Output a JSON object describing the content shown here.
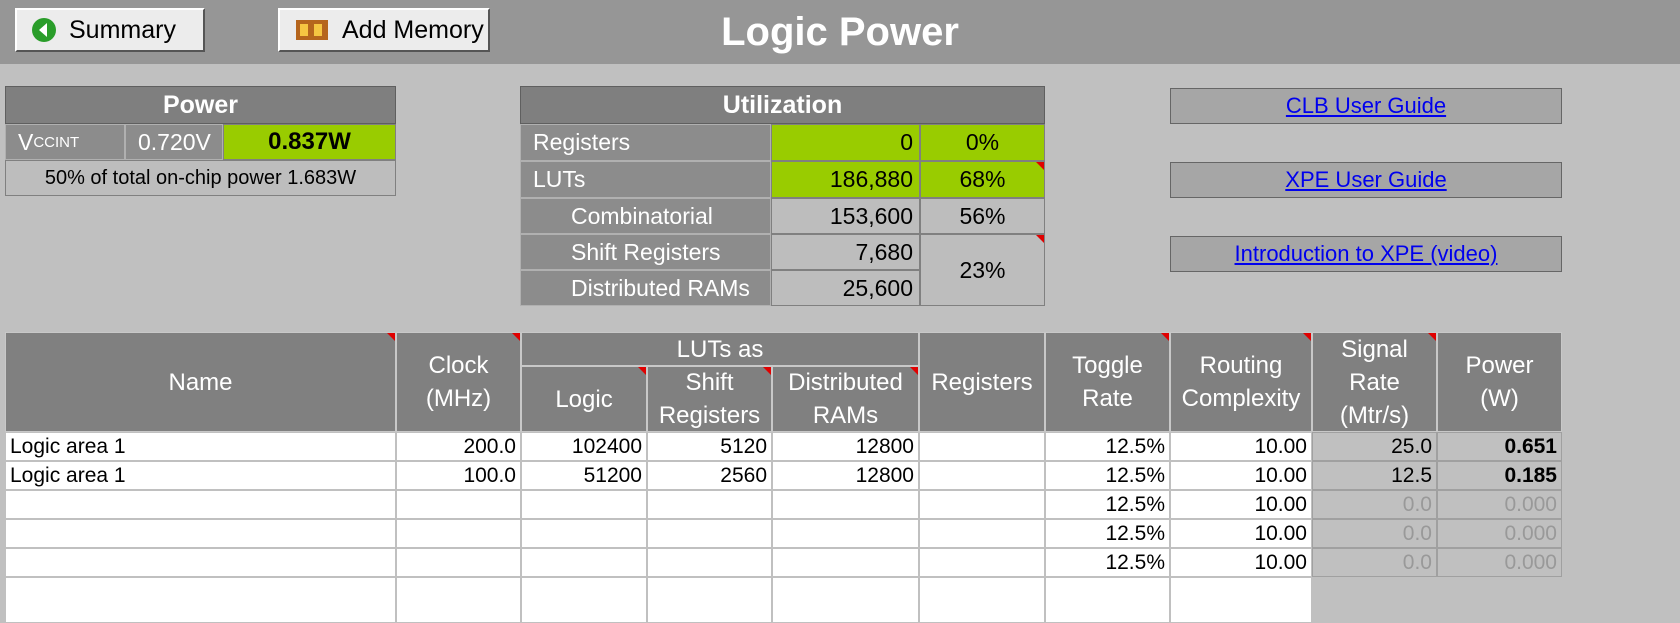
{
  "header": {
    "buttons": [
      "Summary",
      "Add Memory"
    ],
    "title": "Logic Power"
  },
  "power": {
    "title": "Power",
    "supply": "V",
    "supply_sub": "CCINT",
    "voltage": "0.720V",
    "power": "0.837W",
    "note": "50% of total on-chip power 1.683W"
  },
  "utilization": {
    "title": "Utilization",
    "rows": [
      {
        "label": "Registers",
        "count": "0",
        "percent": "0%"
      },
      {
        "label": "LUTs",
        "count": "186,880",
        "percent": "68%"
      },
      {
        "label": "Combinatorial",
        "count": "153,600",
        "percent": "56%"
      },
      {
        "label": "Shift Registers",
        "count": "7,680"
      },
      {
        "label": "Distributed RAMs",
        "count": "25,600"
      }
    ],
    "shared_percent": "23%"
  },
  "links": [
    "CLB User Guide",
    "XPE User Guide",
    "Introduction to XPE (video)"
  ],
  "table": {
    "group": "LUTs as",
    "headers": [
      [
        "Name"
      ],
      [
        "Clock",
        "(MHz)"
      ],
      [
        "Logic"
      ],
      [
        "Shift",
        "Registers"
      ],
      [
        "Distributed",
        "RAMs"
      ],
      [
        "Registers"
      ],
      [
        "Toggle",
        "Rate"
      ],
      [
        "Routing",
        "Complexity"
      ],
      [
        "Signal",
        "Rate",
        "(Mtr/s)"
      ],
      [
        "Power",
        "(W)"
      ]
    ],
    "rows": [
      [
        "Logic area 1",
        "200.0",
        "102400",
        "5120",
        "12800",
        null,
        "12.5%",
        "10.00",
        "25.0",
        "0.651"
      ],
      [
        "Logic area 1",
        "100.0",
        "51200",
        "2560",
        "12800",
        null,
        "12.5%",
        "10.00",
        "12.5",
        "0.185"
      ],
      [
        null,
        null,
        null,
        null,
        null,
        null,
        "12.5%",
        "10.00",
        "0.0",
        "0.000"
      ],
      [
        null,
        null,
        null,
        null,
        null,
        null,
        "12.5%",
        "10.00",
        "0.0",
        "0.000"
      ],
      [
        null,
        null,
        null,
        null,
        null,
        null,
        "12.5%",
        "10.00",
        "0.0",
        "0.000"
      ]
    ]
  }
}
